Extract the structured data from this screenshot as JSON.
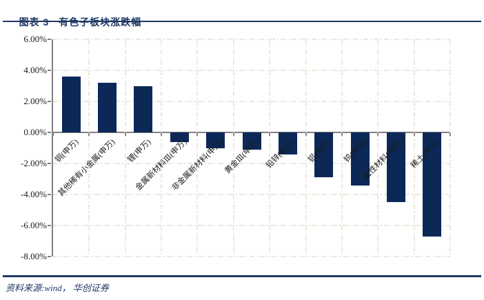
{
  "header": {
    "figure_label": "图表 3",
    "title": "有色子板块涨跌幅"
  },
  "footer": {
    "source": "资料来源:wind， 华创证券"
  },
  "colors": {
    "accent": "#1f3864",
    "bar": "#0c2857",
    "axis": "#808080",
    "grid": "#ece8dd",
    "text": "#1a1a1a"
  },
  "chart_data": {
    "type": "bar",
    "title": "有色子板块涨跌幅",
    "categories": [
      "铜(申万)",
      "其他稀有小金属(申万)",
      "锂(申万)",
      "金属新材料Ⅲ(申万)",
      "非金属新材料(申万)",
      "黄金Ⅲ(申万)",
      "铅锌(申万)",
      "铝(申万)",
      "钨(申万)",
      "磁性材料(申万)",
      "稀土(申万)"
    ],
    "values": [
      3.6,
      3.2,
      3.0,
      -0.6,
      -1.0,
      -1.1,
      -1.4,
      -2.9,
      -3.4,
      -4.5,
      -6.7
    ],
    "unit": "%",
    "xlabel": "",
    "ylabel": "",
    "ylim": [
      -8,
      6
    ],
    "ytick_step": 2,
    "ytick_labels": [
      "6.00%",
      "4.00%",
      "2.00%",
      "0.00%",
      "-2.00%",
      "-4.00%",
      "-6.00%",
      "-8.00%"
    ],
    "grid": true,
    "legend_position": "none"
  }
}
